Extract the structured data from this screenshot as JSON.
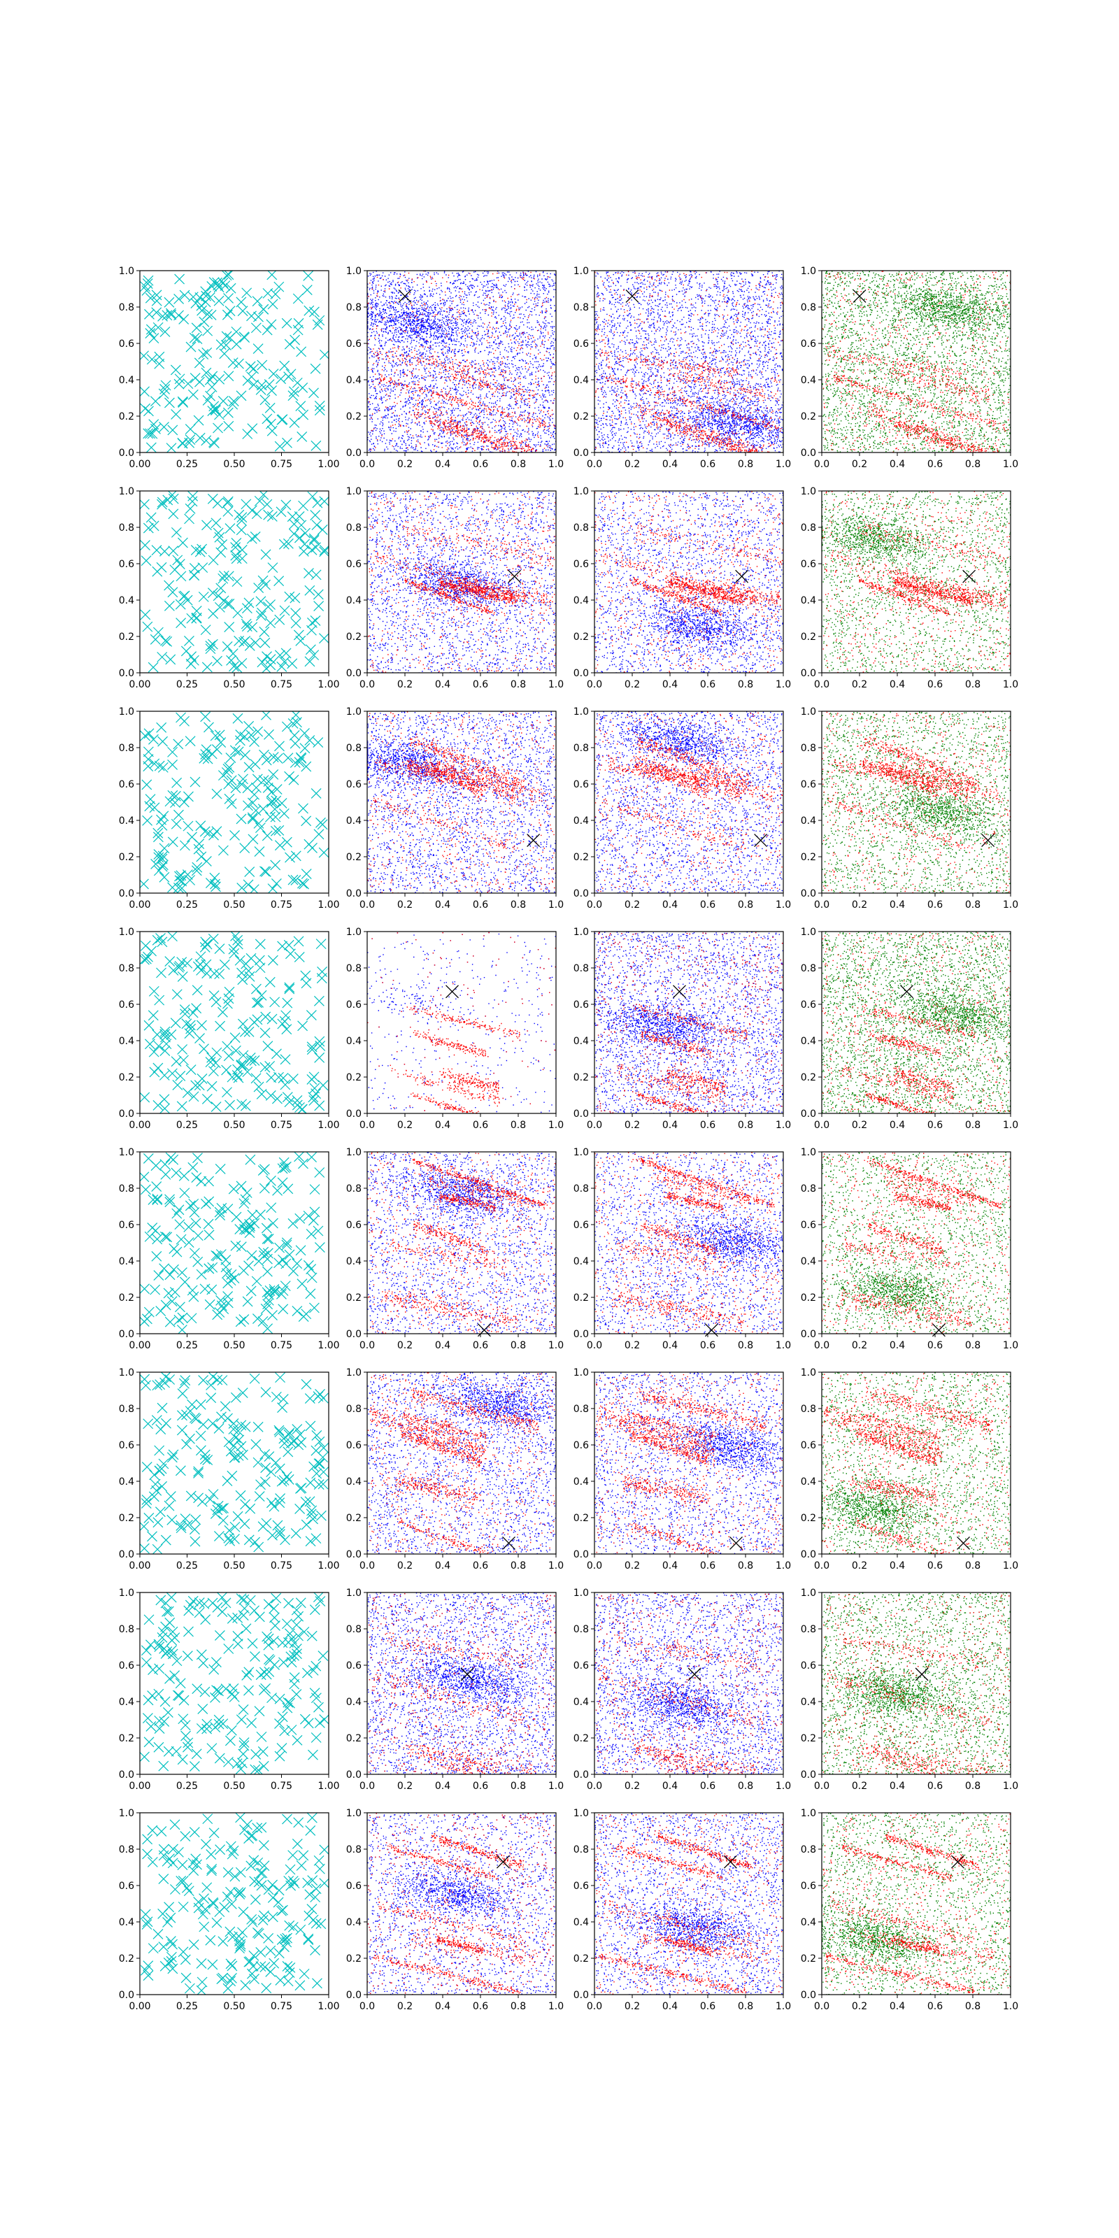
{
  "figure": {
    "rows": 8,
    "cols": 4,
    "column_styles": [
      {
        "marker": "x",
        "color": "#00bfbf",
        "content": "uniform random points (~200)"
      },
      {
        "marker": ".",
        "colors": [
          "#0000ff",
          "#ff0000"
        ],
        "content": "blue and red point clouds"
      },
      {
        "marker": ".",
        "colors": [
          "#0000ff",
          "#ff0000"
        ],
        "content": "blue and red point clouds"
      },
      {
        "marker": ".",
        "colors": [
          "#008000",
          "#ff0000"
        ],
        "content": "green and red point clouds"
      }
    ],
    "query_marker": {
      "marker": "x",
      "color": "#000000"
    }
  },
  "chart_data": {
    "type": "scatter",
    "col1_xticks": [
      "0.00",
      "0.25",
      "0.50",
      "0.75",
      "1.00"
    ],
    "col1_yticks": [
      "0.0",
      "0.2",
      "0.4",
      "0.6",
      "0.8",
      "1.0"
    ],
    "other_xticks": [
      "0.0",
      "0.2",
      "0.4",
      "0.6",
      "0.8",
      "1.0"
    ],
    "other_yticks": [
      "0.0",
      "0.2",
      "0.4",
      "0.6",
      "0.8",
      "1.0"
    ],
    "xlim": [
      0,
      1
    ],
    "ylim": [
      0,
      1
    ],
    "rows": [
      {
        "marker": [
          0.2,
          0.86
        ]
      },
      {
        "marker": [
          0.78,
          0.53
        ]
      },
      {
        "marker": [
          0.88,
          0.29
        ]
      },
      {
        "marker": [
          0.45,
          0.67
        ]
      },
      {
        "marker": [
          0.62,
          0.02
        ]
      },
      {
        "marker": [
          0.75,
          0.06
        ]
      },
      {
        "marker": [
          0.53,
          0.55
        ]
      },
      {
        "marker": [
          0.72,
          0.73
        ]
      }
    ]
  }
}
